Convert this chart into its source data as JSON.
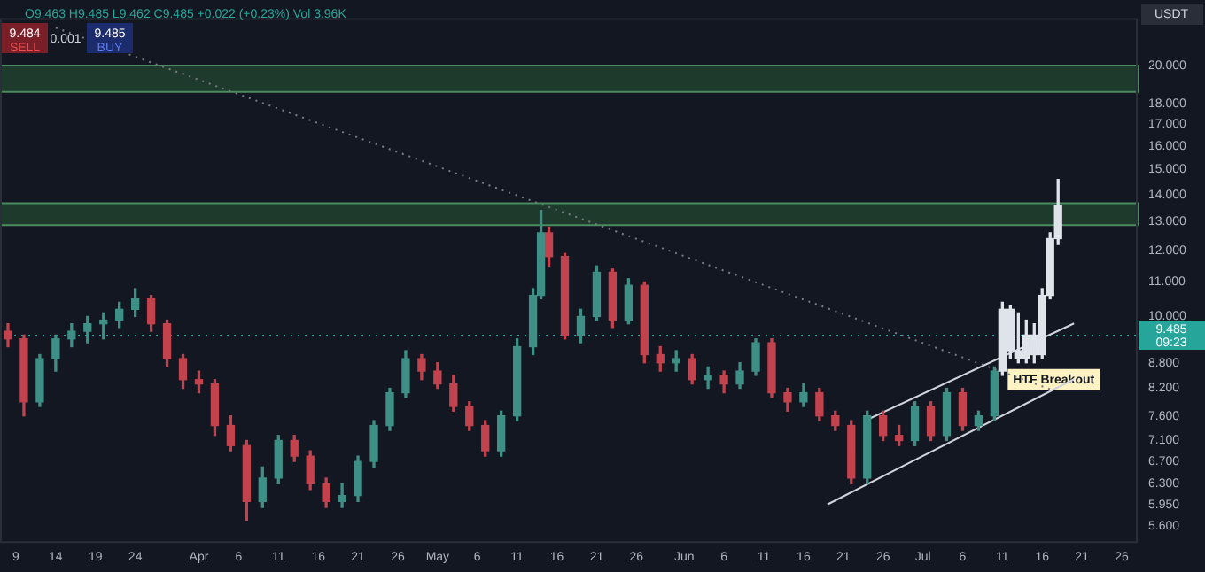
{
  "chart_data": {
    "type": "candlestick",
    "ylabel": "USDT",
    "log": true,
    "grid": false,
    "legend": false,
    "marker": "none",
    "x": [
      "--03-08",
      "--03-10",
      "--03-12",
      "--03-14",
      "--03-16",
      "--03-18",
      "--03-20",
      "--03-22",
      "--03-24",
      "--03-26",
      "--03-28",
      "--03-30",
      "--04-01",
      "--04-03",
      "--04-05",
      "--04-07",
      "--04-09",
      "--04-11",
      "--04-13",
      "--04-15",
      "--04-17",
      "--04-19",
      "--04-21",
      "--04-23",
      "--04-25",
      "--04-27",
      "--04-29",
      "--05-01",
      "--05-03",
      "--05-05",
      "--05-07",
      "--05-09",
      "--05-11",
      "--05-13",
      "--05-14",
      "--05-15",
      "--05-17",
      "--05-19",
      "--05-21",
      "--05-23",
      "--05-25",
      "--05-27",
      "--05-29",
      "--05-31",
      "--06-02",
      "--06-04",
      "--06-06",
      "--06-08",
      "--06-10",
      "--06-12",
      "--06-14",
      "--06-16",
      "--06-18",
      "--06-20",
      "--06-22",
      "--06-24",
      "--06-26",
      "--06-28",
      "--06-30",
      "--07-02",
      "--07-04",
      "--07-06",
      "--07-08",
      "--07-10",
      "--07-11",
      "--07-12",
      "--07-13",
      "--07-14",
      "--07-15",
      "--07-16",
      "--07-17",
      "--07-18"
    ],
    "ohlc": [
      [
        9.6,
        9.8,
        9.2,
        9.4
      ],
      [
        9.4,
        9.5,
        7.6,
        7.9
      ],
      [
        7.9,
        9.0,
        7.8,
        8.9
      ],
      [
        8.9,
        9.5,
        8.6,
        9.4
      ],
      [
        9.4,
        9.8,
        9.2,
        9.6
      ],
      [
        9.6,
        10.0,
        9.3,
        9.8
      ],
      [
        9.8,
        10.1,
        9.4,
        9.9
      ],
      [
        9.9,
        10.4,
        9.7,
        10.2
      ],
      [
        10.2,
        10.8,
        10.0,
        10.5
      ],
      [
        10.5,
        10.6,
        9.6,
        9.8
      ],
      [
        9.8,
        9.9,
        8.7,
        8.9
      ],
      [
        8.9,
        9.0,
        8.2,
        8.4
      ],
      [
        8.4,
        8.6,
        8.1,
        8.3
      ],
      [
        8.3,
        8.4,
        7.2,
        7.4
      ],
      [
        7.4,
        7.6,
        6.9,
        7.0
      ],
      [
        7.0,
        7.1,
        5.7,
        6.0
      ],
      [
        6.0,
        6.6,
        5.9,
        6.4
      ],
      [
        6.4,
        7.2,
        6.3,
        7.1
      ],
      [
        7.1,
        7.2,
        6.7,
        6.8
      ],
      [
        6.8,
        6.9,
        6.2,
        6.3
      ],
      [
        6.3,
        6.4,
        5.9,
        6.0
      ],
      [
        6.0,
        6.3,
        5.9,
        6.1
      ],
      [
        6.1,
        6.8,
        6.0,
        6.7
      ],
      [
        6.7,
        7.5,
        6.6,
        7.4
      ],
      [
        7.4,
        8.2,
        7.3,
        8.1
      ],
      [
        8.1,
        9.1,
        8.0,
        8.9
      ],
      [
        8.9,
        9.0,
        8.4,
        8.6
      ],
      [
        8.6,
        8.8,
        8.2,
        8.3
      ],
      [
        8.3,
        8.5,
        7.7,
        7.8
      ],
      [
        7.8,
        7.9,
        7.3,
        7.4
      ],
      [
        7.4,
        7.5,
        6.8,
        6.9
      ],
      [
        6.9,
        7.7,
        6.8,
        7.6
      ],
      [
        7.6,
        9.4,
        7.5,
        9.2
      ],
      [
        9.2,
        10.8,
        9.0,
        10.6
      ],
      [
        10.6,
        13.4,
        10.5,
        12.6
      ],
      [
        12.6,
        12.8,
        11.5,
        11.8
      ],
      [
        11.8,
        11.9,
        9.4,
        9.5
      ],
      [
        9.5,
        10.2,
        9.3,
        10.0
      ],
      [
        10.0,
        11.5,
        9.9,
        11.3
      ],
      [
        11.3,
        11.4,
        9.7,
        9.9
      ],
      [
        9.9,
        11.1,
        9.8,
        10.9
      ],
      [
        10.9,
        11.0,
        8.8,
        9.0
      ],
      [
        9.0,
        9.2,
        8.6,
        8.8
      ],
      [
        8.8,
        9.1,
        8.6,
        8.9
      ],
      [
        8.9,
        9.0,
        8.3,
        8.4
      ],
      [
        8.4,
        8.7,
        8.2,
        8.5
      ],
      [
        8.5,
        8.6,
        8.1,
        8.3
      ],
      [
        8.3,
        8.8,
        8.2,
        8.6
      ],
      [
        8.6,
        9.4,
        8.5,
        9.3
      ],
      [
        9.3,
        9.4,
        8.0,
        8.1
      ],
      [
        8.1,
        8.2,
        7.7,
        7.9
      ],
      [
        7.9,
        8.3,
        7.8,
        8.1
      ],
      [
        8.1,
        8.2,
        7.5,
        7.6
      ],
      [
        7.6,
        7.7,
        7.3,
        7.4
      ],
      [
        7.4,
        7.5,
        6.3,
        6.4
      ],
      [
        6.4,
        7.7,
        6.3,
        7.6
      ],
      [
        7.6,
        7.7,
        7.1,
        7.2
      ],
      [
        7.2,
        7.4,
        7.0,
        7.1
      ],
      [
        7.1,
        7.9,
        7.0,
        7.8
      ],
      [
        7.8,
        7.9,
        7.1,
        7.2
      ],
      [
        7.2,
        8.2,
        7.1,
        8.1
      ],
      [
        8.1,
        8.2,
        7.3,
        7.4
      ],
      [
        7.4,
        7.7,
        7.3,
        7.6
      ],
      [
        7.6,
        8.7,
        7.5,
        8.6
      ],
      [
        8.6,
        10.4,
        8.5,
        10.2
      ],
      [
        10.2,
        10.3,
        8.9,
        9.1
      ],
      [
        9.1,
        10.1,
        8.8,
        8.9
      ],
      [
        8.9,
        9.9,
        8.8,
        9.5
      ],
      [
        9.5,
        9.8,
        8.8,
        9.0
      ],
      [
        9.0,
        10.8,
        8.9,
        10.6
      ],
      [
        10.6,
        12.6,
        10.5,
        12.4
      ],
      [
        12.4,
        14.6,
        12.2,
        13.6
      ]
    ],
    "colors": [
      "#c2434d",
      "#c2434d",
      "#3e8f86",
      "#3e8f86",
      "#3e8f86",
      "#3e8f86",
      "#3e8f86",
      "#3e8f86",
      "#3e8f86",
      "#c2434d",
      "#c2434d",
      "#c2434d",
      "#c2434d",
      "#c2434d",
      "#c2434d",
      "#c2434d",
      "#3e8f86",
      "#3e8f86",
      "#c2434d",
      "#c2434d",
      "#c2434d",
      "#3e8f86",
      "#3e8f86",
      "#3e8f86",
      "#3e8f86",
      "#3e8f86",
      "#c2434d",
      "#c2434d",
      "#c2434d",
      "#c2434d",
      "#c2434d",
      "#3e8f86",
      "#3e8f86",
      "#3e8f86",
      "#3e8f86",
      "#c2434d",
      "#c2434d",
      "#3e8f86",
      "#3e8f86",
      "#c2434d",
      "#3e8f86",
      "#c2434d",
      "#c2434d",
      "#3e8f86",
      "#c2434d",
      "#3e8f86",
      "#c2434d",
      "#3e8f86",
      "#3e8f86",
      "#c2434d",
      "#c2434d",
      "#3e8f86",
      "#c2434d",
      "#c2434d",
      "#c2434d",
      "#3e8f86",
      "#c2434d",
      "#c2434d",
      "#3e8f86",
      "#c2434d",
      "#3e8f86",
      "#c2434d",
      "#3e8f86",
      "#3e8f86",
      "#dfe3ea",
      "#dfe3ea",
      "#dfe3ea",
      "#dfe3ea",
      "#dfe3ea",
      "#dfe3ea",
      "#dfe3ea",
      "#dfe3ea"
    ],
    "series": [
      {
        "type": "line",
        "x": [
          "--03-14",
          "--07-17"
        ],
        "values": [
          22.2,
          8.18
        ],
        "color": "#787b86",
        "line_style": "dotted"
      },
      {
        "type": "line",
        "x": [
          "--06-19",
          "--07-20"
        ],
        "values": [
          5.95,
          8.41
        ],
        "color": "#d1d4dc",
        "line_style": "solid"
      },
      {
        "type": "line",
        "x": [
          "--06-24",
          "--07-20"
        ],
        "values": [
          7.52,
          9.81
        ],
        "color": "#d1d4dc",
        "line_style": "solid"
      }
    ],
    "bands": [
      {
        "axis": "y",
        "from": 18.6,
        "to": 20.0,
        "color": "#1e3a2c"
      },
      {
        "axis": "y",
        "from": 12.87,
        "to": 13.67,
        "color": "#1e3a2c"
      }
    ],
    "ref_lines": [
      {
        "axis": "y",
        "value": 9.485,
        "label": "9.485",
        "color": "#26a69a",
        "line_style": "dotted"
      }
    ],
    "annotations": [
      "O9.463 H9.485 L9.462 C9.485 +0.022 (+0.23%) Vol 3.96K",
      "9.484",
      "SELL",
      "0.001",
      "9.485",
      "BUY",
      "09:23",
      {
        "text": "HTF Breakout",
        "x": "--07-11",
        "y": 8.4
      }
    ],
    "ylim": [
      5.35,
      22.8
    ],
    "yticks": [
      {
        "value": 20,
        "label": "20.000"
      },
      {
        "value": 18,
        "label": "18.000"
      },
      {
        "value": 17,
        "label": "17.000"
      },
      {
        "value": 16,
        "label": "16.000"
      },
      {
        "value": 15,
        "label": "15.000"
      },
      {
        "value": 14,
        "label": "14.000"
      },
      {
        "value": 13,
        "label": "13.000"
      },
      {
        "value": 12,
        "label": "12.000"
      },
      {
        "value": 11,
        "label": "11.000"
      },
      {
        "value": 10,
        "label": "10.000"
      },
      {
        "value": 8.8,
        "label": "8.800"
      },
      {
        "value": 8.2,
        "label": "8.200"
      },
      {
        "value": 7.6,
        "label": "7.600"
      },
      {
        "value": 7.1,
        "label": "7.100"
      },
      {
        "value": 6.7,
        "label": "6.700"
      },
      {
        "value": 6.3,
        "label": "6.300"
      },
      {
        "value": 5.95,
        "label": "5.950"
      },
      {
        "value": 5.6,
        "label": "5.600"
      }
    ],
    "xlim": [
      "--03-07",
      "--07-28"
    ],
    "xticks": [
      {
        "value": "--03-09",
        "label": "9"
      },
      {
        "value": "--03-14",
        "label": "14"
      },
      {
        "value": "--03-19",
        "label": "19"
      },
      {
        "value": "--03-24",
        "label": "24"
      },
      {
        "value": "--04-01",
        "label": "Apr"
      },
      {
        "value": "--04-06",
        "label": "6"
      },
      {
        "value": "--04-11",
        "label": "11"
      },
      {
        "value": "--04-16",
        "label": "16"
      },
      {
        "value": "--04-21",
        "label": "21"
      },
      {
        "value": "--04-26",
        "label": "26"
      },
      {
        "value": "--05-01",
        "label": "May"
      },
      {
        "value": "--05-06",
        "label": "6"
      },
      {
        "value": "--05-11",
        "label": "11"
      },
      {
        "value": "--05-16",
        "label": "16"
      },
      {
        "value": "--05-21",
        "label": "21"
      },
      {
        "value": "--05-26",
        "label": "26"
      },
      {
        "value": "--06-01",
        "label": "Jun"
      },
      {
        "value": "--06-06",
        "label": "6"
      },
      {
        "value": "--06-11",
        "label": "11"
      },
      {
        "value": "--06-16",
        "label": "16"
      },
      {
        "value": "--06-21",
        "label": "21"
      },
      {
        "value": "--06-26",
        "label": "26"
      },
      {
        "value": "--07-01",
        "label": "Jul"
      },
      {
        "value": "--07-06",
        "label": "6"
      },
      {
        "value": "--07-11",
        "label": "11"
      },
      {
        "value": "--07-16",
        "label": "16"
      },
      {
        "value": "--07-21",
        "label": "21"
      },
      {
        "value": "--07-26",
        "label": "26"
      }
    ]
  }
}
